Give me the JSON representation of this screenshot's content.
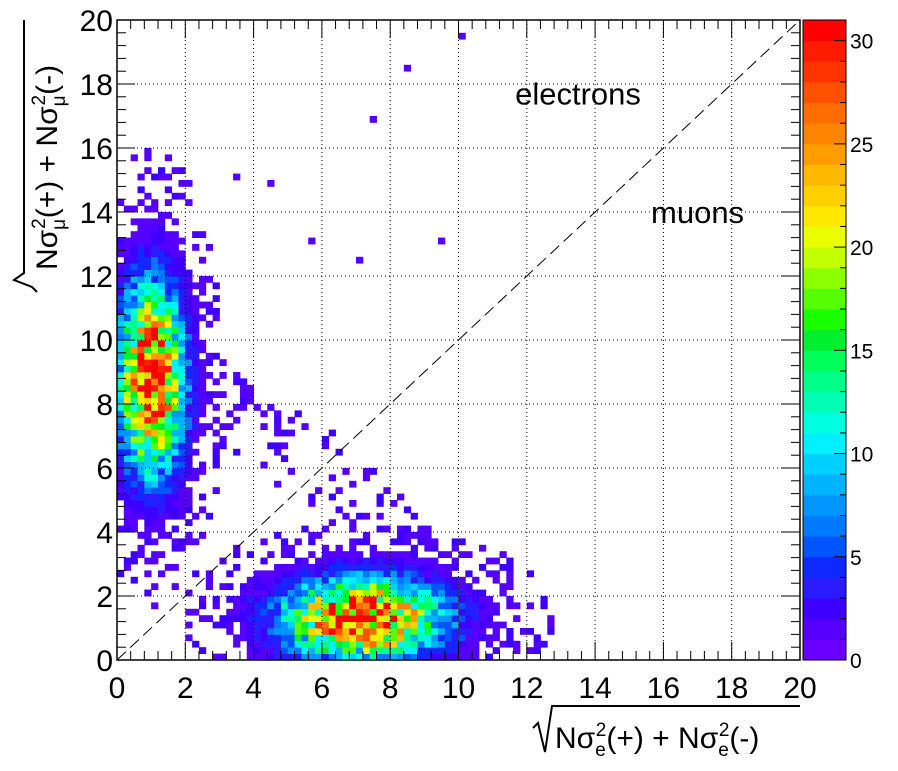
{
  "chart_data": {
    "type": "heatmap",
    "title": "",
    "xlabel_parts": [
      "N",
      "σ",
      "e",
      "2",
      "(+) + ",
      "N",
      "σ",
      "e",
      "2",
      "(-)"
    ],
    "ylabel_parts": [
      "N",
      "σ",
      "μ",
      "2",
      "(+) + ",
      "N",
      "σ",
      "μ",
      "2",
      "(-)"
    ],
    "xlim": [
      0,
      20
    ],
    "ylim": [
      0,
      20
    ],
    "x_ticks": [
      "0",
      "2",
      "4",
      "6",
      "8",
      "10",
      "12",
      "14",
      "16",
      "18",
      "20"
    ],
    "y_ticks": [
      "0",
      "2",
      "4",
      "6",
      "8",
      "10",
      "12",
      "14",
      "16",
      "18",
      "20"
    ],
    "grid": true,
    "grid_style": "dotted",
    "bin_width": 0.2,
    "zlim": [
      0,
      31
    ],
    "colorbar_ticks": [
      "0",
      "5",
      "10",
      "15",
      "20",
      "25",
      "30"
    ],
    "colorbar_levels": 31,
    "colormap": "ROOT kBird / rainbow (violet to red)",
    "diagonal_line": {
      "from": [
        0,
        0
      ],
      "to": [
        20,
        20
      ],
      "style": "dashed"
    },
    "annotations": [
      {
        "text": "electrons",
        "x": 13.5,
        "y": 17.7
      },
      {
        "text": "muons",
        "x": 17.0,
        "y": 14.0
      }
    ],
    "clusters": [
      {
        "name_hint": "muon-like cluster",
        "x_center": 1.0,
        "y_center": 8.8,
        "x_spread": 0.6,
        "y_spread": 1.9,
        "peak_count": 31
      },
      {
        "name_hint": "electron-like cluster",
        "x_center": 7.2,
        "y_center": 1.3,
        "x_spread": 1.5,
        "y_spread": 0.8,
        "peak_count": 31
      }
    ]
  },
  "colors": {
    "background": "#ffffff",
    "frame": "#000000",
    "grid": "#000000",
    "palette": [
      "#6a00ff",
      "#5500ff",
      "#3d00ff",
      "#2a1bff",
      "#0f28ff",
      "#0055ff",
      "#0079ff",
      "#0095ff",
      "#00b3ff",
      "#00d0ff",
      "#00f0ff",
      "#00ffe1",
      "#00ffb5",
      "#00ff88",
      "#00ff5a",
      "#00f030",
      "#18ff00",
      "#55ff00",
      "#8cff00",
      "#c3ff00",
      "#eaff00",
      "#ffe800",
      "#ffd000",
      "#ffb800",
      "#ff9c00",
      "#ff8400",
      "#ff6c00",
      "#ff5000",
      "#ff3400",
      "#ff1c00",
      "#ff0000"
    ]
  }
}
